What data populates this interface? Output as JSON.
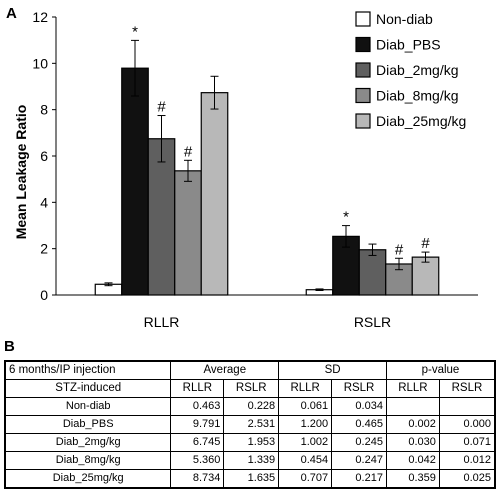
{
  "panel_a_label": "A",
  "panel_b_label": "B",
  "chart_data": {
    "type": "bar",
    "categories": [
      "RLLR",
      "RSLR"
    ],
    "ylabel": "Mean Leakage Ratio",
    "ylim": [
      0,
      12
    ],
    "yticks": [
      0,
      2,
      4,
      6,
      8,
      10,
      12
    ],
    "legend_position": "top-right",
    "series": [
      {
        "name": "Non-diab",
        "values": [
          0.463,
          0.228
        ],
        "errors": [
          0.061,
          0.034
        ],
        "color": "#ffffff",
        "markers": [
          "",
          ""
        ]
      },
      {
        "name": "Diab_PBS",
        "values": [
          9.791,
          2.531
        ],
        "errors": [
          1.2,
          0.465
        ],
        "color": "#111111",
        "markers": [
          "*",
          "*"
        ]
      },
      {
        "name": "Diab_2mg/kg",
        "values": [
          6.745,
          1.953
        ],
        "errors": [
          1.002,
          0.245
        ],
        "color": "#5f5f5f",
        "markers": [
          "#",
          ""
        ]
      },
      {
        "name": "Diab_8mg/kg",
        "values": [
          5.36,
          1.339
        ],
        "errors": [
          0.454,
          0.247
        ],
        "color": "#8a8a8a",
        "markers": [
          "#",
          "#"
        ]
      },
      {
        "name": "Diab_25mg/kg",
        "values": [
          8.734,
          1.635
        ],
        "errors": [
          0.707,
          0.217
        ],
        "color": "#b8b8b8",
        "markers": [
          "",
          "#"
        ]
      }
    ]
  },
  "table": {
    "header1": [
      "6 months/IP injection",
      "Average",
      "SD",
      "p-value"
    ],
    "header2": [
      "STZ-induced",
      "RLLR",
      "RSLR",
      "RLLR",
      "RSLR",
      "RLLR",
      "RSLR"
    ],
    "rows": [
      {
        "label": "Non-diab",
        "avg_rllr": "0.463",
        "avg_rslr": "0.228",
        "sd_rllr": "0.061",
        "sd_rslr": "0.034",
        "p_rllr": "",
        "p_rslr": ""
      },
      {
        "label": "Diab_PBS",
        "avg_rllr": "9.791",
        "avg_rslr": "2.531",
        "sd_rllr": "1.200",
        "sd_rslr": "0.465",
        "p_rllr": "0.002",
        "p_rslr": "0.000"
      },
      {
        "label": "Diab_2mg/kg",
        "avg_rllr": "6.745",
        "avg_rslr": "1.953",
        "sd_rllr": "1.002",
        "sd_rslr": "0.245",
        "p_rllr": "0.030",
        "p_rslr": "0.071"
      },
      {
        "label": "Diab_8mg/kg",
        "avg_rllr": "5.360",
        "avg_rslr": "1.339",
        "sd_rllr": "0.454",
        "sd_rslr": "0.247",
        "p_rllr": "0.042",
        "p_rslr": "0.012"
      },
      {
        "label": "Diab_25mg/kg",
        "avg_rllr": "8.734",
        "avg_rslr": "1.635",
        "sd_rllr": "0.707",
        "sd_rslr": "0.217",
        "p_rllr": "0.359",
        "p_rslr": "0.025"
      }
    ]
  }
}
